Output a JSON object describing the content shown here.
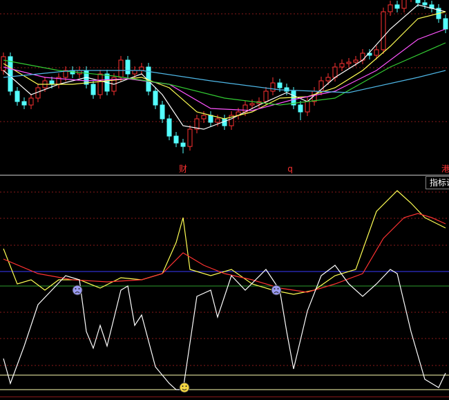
{
  "chart_data": [
    {
      "type": "candlestick",
      "ylim": [
        0,
        250
      ],
      "up_color": "#ff3232",
      "down_color": "#54ffff",
      "open": [
        150,
        170,
        120,
        105,
        100,
        110,
        125,
        135,
        130,
        140,
        150,
        145,
        150,
        130,
        115,
        145,
        120,
        140,
        165,
        145,
        150,
        155,
        120,
        100,
        80,
        55,
        45,
        40,
        65,
        80,
        85,
        75,
        80,
        70,
        85,
        90,
        100,
        102,
        105,
        120,
        132,
        125,
        120,
        100,
        90,
        105,
        120,
        135,
        140,
        155,
        160,
        162,
        165,
        175,
        172,
        180,
        235,
        245,
        240,
        255,
        260,
        248,
        245,
        240,
        225
      ],
      "close": [
        170,
        120,
        105,
        100,
        110,
        125,
        135,
        130,
        140,
        150,
        145,
        150,
        130,
        115,
        145,
        120,
        140,
        165,
        145,
        150,
        155,
        120,
        100,
        80,
        55,
        45,
        40,
        65,
        80,
        85,
        75,
        80,
        70,
        85,
        90,
        100,
        102,
        105,
        120,
        132,
        125,
        120,
        100,
        90,
        105,
        120,
        135,
        140,
        155,
        160,
        162,
        165,
        175,
        172,
        180,
        235,
        245,
        240,
        255,
        260,
        248,
        245,
        240,
        225,
        210
      ],
      "high": [
        176,
        176,
        126,
        111,
        116,
        131,
        141,
        141,
        146,
        156,
        156,
        156,
        156,
        136,
        151,
        151,
        146,
        171,
        171,
        156,
        161,
        161,
        126,
        106,
        86,
        61,
        51,
        71,
        86,
        91,
        91,
        86,
        86,
        91,
        96,
        106,
        108,
        111,
        126,
        140,
        138,
        131,
        126,
        106,
        111,
        126,
        141,
        146,
        161,
        166,
        168,
        171,
        181,
        181,
        186,
        241,
        251,
        251,
        261,
        266,
        266,
        254,
        251,
        246,
        231
      ],
      "low": [
        144,
        114,
        99,
        94,
        94,
        104,
        119,
        124,
        124,
        134,
        139,
        139,
        124,
        109,
        109,
        114,
        114,
        134,
        139,
        139,
        144,
        114,
        94,
        74,
        49,
        39,
        30,
        34,
        59,
        74,
        69,
        69,
        64,
        64,
        79,
        84,
        94,
        96,
        99,
        114,
        119,
        114,
        94,
        78,
        84,
        99,
        114,
        129,
        134,
        149,
        154,
        156,
        159,
        166,
        166,
        174,
        229,
        234,
        234,
        249,
        242,
        239,
        234,
        219,
        204
      ],
      "series": [
        {
          "color": "#ffffff",
          "x": [
            0,
            4,
            8,
            12,
            16,
            20,
            23,
            26,
            29,
            33,
            37,
            41,
            44,
            48,
            52,
            56,
            60,
            64
          ],
          "values": [
            150,
            115,
            130,
            140,
            130,
            145,
            115,
            70,
            65,
            80,
            100,
            118,
            105,
            140,
            165,
            210,
            245,
            235
          ]
        },
        {
          "color": "#ffff54",
          "x": [
            0,
            5,
            10,
            15,
            20,
            24,
            28,
            32,
            36,
            40,
            44,
            48,
            52,
            56,
            60,
            64
          ],
          "values": [
            160,
            130,
            130,
            135,
            140,
            125,
            90,
            80,
            90,
            110,
            112,
            125,
            150,
            185,
            225,
            235
          ]
        },
        {
          "color": "#ff54ff",
          "x": [
            0,
            6,
            12,
            18,
            24,
            30,
            36,
            42,
            48,
            54,
            60,
            64
          ],
          "values": [
            155,
            140,
            135,
            138,
            130,
            95,
            92,
            108,
            120,
            150,
            195,
            210
          ]
        },
        {
          "color": "#33cc33",
          "x": [
            0,
            8,
            16,
            24,
            32,
            40,
            48,
            56,
            64
          ],
          "values": [
            165,
            150,
            142,
            130,
            110,
            100,
            110,
            155,
            190
          ]
        },
        {
          "color": "#4fb8e8",
          "x": [
            0,
            10,
            20,
            30,
            40,
            50,
            60,
            64
          ],
          "values": [
            140,
            150,
            150,
            135,
            122,
            118,
            140,
            150
          ]
        }
      ],
      "events": [
        {
          "x": 26,
          "label": "财"
        },
        {
          "x": 41.5,
          "label": "q"
        },
        {
          "x": 64,
          "label": "港"
        }
      ],
      "event_color": "#ff3232"
    },
    {
      "type": "line",
      "ylim": [
        0,
        100
      ],
      "button": "指标说",
      "hlines": [
        {
          "value": 59,
          "color": "#3a3aff"
        },
        {
          "value": 52,
          "color": "#2e9e2e"
        },
        {
          "value": 9,
          "color": "#ffffb0"
        },
        {
          "value": 2,
          "color": "#ffffb0"
        }
      ],
      "series": [
        {
          "color": "#ffff54",
          "x": [
            0,
            2,
            4,
            6,
            8,
            11,
            14,
            17,
            20,
            23,
            25,
            26,
            27,
            30,
            33,
            36,
            39,
            42,
            45,
            48,
            51,
            54,
            57,
            59,
            61,
            64
          ],
          "values": [
            70,
            53,
            55,
            50,
            55,
            55,
            51,
            56,
            55,
            58,
            73,
            85,
            60,
            57,
            60,
            53,
            50,
            48,
            50,
            57,
            60,
            88,
            98,
            92,
            85,
            80
          ]
        },
        {
          "color": "#ff3232",
          "x": [
            0,
            5,
            10,
            15,
            20,
            23,
            26,
            29,
            32,
            36,
            40,
            44,
            48,
            52,
            55,
            58,
            60,
            62,
            64
          ],
          "values": [
            65,
            58,
            55,
            54,
            55,
            58,
            68,
            62,
            58,
            55,
            51,
            49,
            53,
            58,
            75,
            85,
            87,
            85,
            82
          ]
        },
        {
          "color": "#ffffff",
          "x": [
            0,
            1,
            3,
            5,
            7,
            9,
            11,
            12,
            13,
            14,
            15,
            17,
            18,
            19,
            20,
            22,
            24,
            25,
            26,
            28,
            30,
            31,
            33,
            35,
            38,
            40,
            41,
            42,
            44,
            46,
            48,
            50,
            52,
            54,
            56,
            57,
            59,
            61,
            63,
            64
          ],
          "values": [
            17,
            5,
            23,
            43,
            50,
            57,
            55,
            30,
            22,
            33,
            23,
            50,
            52,
            33,
            38,
            13,
            5,
            2,
            2,
            47,
            50,
            37,
            57,
            50,
            60,
            50,
            30,
            12,
            40,
            57,
            62,
            53,
            47,
            53,
            60,
            58,
            30,
            7,
            3,
            10
          ]
        }
      ],
      "signals": [
        {
          "x": 10.7,
          "value": 50,
          "color": "#9a9af0"
        },
        {
          "x": 39.5,
          "value": 50,
          "color": "#9a9af0"
        },
        {
          "x": 26.2,
          "value": 3,
          "color": "#f5d742"
        }
      ]
    }
  ]
}
